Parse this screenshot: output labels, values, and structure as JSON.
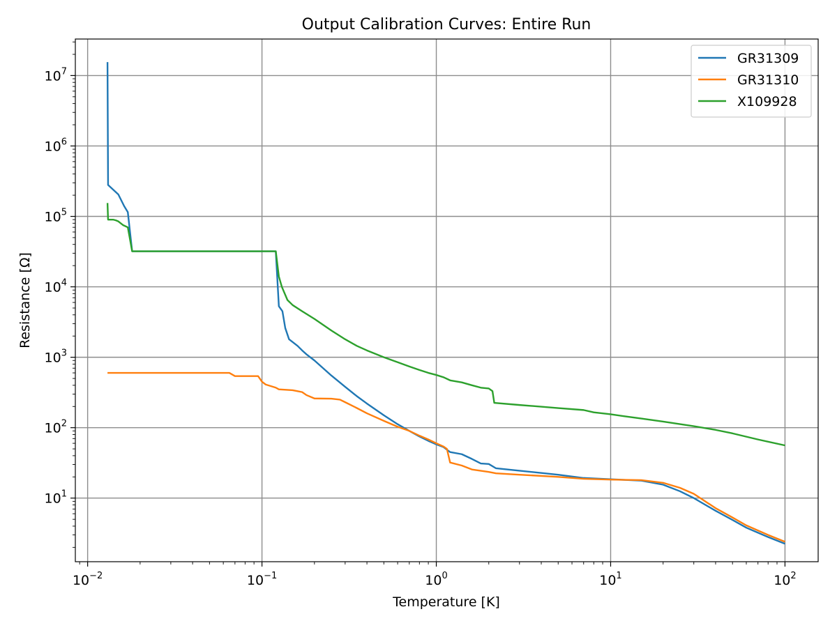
{
  "chart_data": {
    "type": "line",
    "title": "Output Calibration Curves: Entire Run",
    "xlabel": "Temperature [K]",
    "ylabel": "Resistance [Ω]",
    "xscale": "log",
    "yscale": "log",
    "xlim": [
      0.0085,
      155
    ],
    "ylim": [
      1.25,
      33000000
    ],
    "grid": true,
    "legend_position": "top-right",
    "x_ticks": [
      {
        "value": 0.01,
        "base": "10",
        "exp": "−2"
      },
      {
        "value": 0.1,
        "base": "10",
        "exp": "−1"
      },
      {
        "value": 1,
        "base": "10",
        "exp": "0"
      },
      {
        "value": 10,
        "base": "10",
        "exp": "1"
      },
      {
        "value": 100,
        "base": "10",
        "exp": "2"
      }
    ],
    "y_ticks": [
      {
        "value": 10,
        "base": "10",
        "exp": "1"
      },
      {
        "value": 100,
        "base": "10",
        "exp": "2"
      },
      {
        "value": 1000,
        "base": "10",
        "exp": "3"
      },
      {
        "value": 10000,
        "base": "10",
        "exp": "4"
      },
      {
        "value": 100000,
        "base": "10",
        "exp": "5"
      },
      {
        "value": 1000000,
        "base": "10",
        "exp": "6"
      },
      {
        "value": 10000000,
        "base": "10",
        "exp": "7"
      }
    ],
    "series": [
      {
        "name": "GR31309",
        "color": "#1f77b4",
        "points": [
          [
            0.013,
            15500000
          ],
          [
            0.0131,
            280000
          ],
          [
            0.015,
            205000
          ],
          [
            0.0162,
            140000
          ],
          [
            0.017,
            115000
          ],
          [
            0.018,
            32000
          ],
          [
            0.12,
            32000
          ],
          [
            0.125,
            5300
          ],
          [
            0.131,
            4500
          ],
          [
            0.136,
            2600
          ],
          [
            0.143,
            1800
          ],
          [
            0.16,
            1450
          ],
          [
            0.17,
            1250
          ],
          [
            0.18,
            1100
          ],
          [
            0.2,
            900
          ],
          [
            0.25,
            550
          ],
          [
            0.3,
            380
          ],
          [
            0.35,
            280
          ],
          [
            0.4,
            220
          ],
          [
            0.5,
            150
          ],
          [
            0.6,
            112
          ],
          [
            0.7,
            90
          ],
          [
            0.8,
            75
          ],
          [
            0.9,
            65
          ],
          [
            1.0,
            58
          ],
          [
            1.1,
            53
          ],
          [
            1.2,
            45
          ],
          [
            1.4,
            42
          ],
          [
            1.6,
            36
          ],
          [
            1.8,
            31
          ],
          [
            2.0,
            30.5
          ],
          [
            2.2,
            26.5
          ],
          [
            3,
            24.5
          ],
          [
            5,
            21.5
          ],
          [
            7,
            19.3
          ],
          [
            10,
            18.5
          ],
          [
            15,
            17.7
          ],
          [
            20,
            15.5
          ],
          [
            25,
            12.5
          ],
          [
            30,
            10
          ],
          [
            40,
            6.6
          ],
          [
            50,
            4.9
          ],
          [
            60,
            3.8
          ],
          [
            80,
            2.8
          ],
          [
            100,
            2.25
          ]
        ]
      },
      {
        "name": "GR31310",
        "color": "#ff7f0e",
        "points": [
          [
            0.013,
            600
          ],
          [
            0.065,
            600
          ],
          [
            0.07,
            540
          ],
          [
            0.095,
            540
          ],
          [
            0.1,
            450
          ],
          [
            0.105,
            410
          ],
          [
            0.12,
            370
          ],
          [
            0.125,
            350
          ],
          [
            0.15,
            340
          ],
          [
            0.16,
            330
          ],
          [
            0.17,
            320
          ],
          [
            0.18,
            290
          ],
          [
            0.2,
            260
          ],
          [
            0.25,
            258
          ],
          [
            0.28,
            250
          ],
          [
            0.3,
            230
          ],
          [
            0.35,
            190
          ],
          [
            0.4,
            160
          ],
          [
            0.5,
            125
          ],
          [
            0.6,
            103
          ],
          [
            0.7,
            90
          ],
          [
            0.8,
            77
          ],
          [
            0.9,
            68
          ],
          [
            1.0,
            60
          ],
          [
            1.1,
            54
          ],
          [
            1.15,
            50
          ],
          [
            1.2,
            32
          ],
          [
            1.4,
            29
          ],
          [
            1.6,
            25.5
          ],
          [
            2.0,
            23.5
          ],
          [
            2.2,
            22.5
          ],
          [
            3,
            21.5
          ],
          [
            5,
            20
          ],
          [
            7,
            18.8
          ],
          [
            10,
            18.3
          ],
          [
            15,
            18
          ],
          [
            20,
            16.5
          ],
          [
            25,
            14
          ],
          [
            30,
            11.5
          ],
          [
            40,
            7.2
          ],
          [
            50,
            5.3
          ],
          [
            60,
            4.1
          ],
          [
            80,
            3.0
          ],
          [
            100,
            2.4
          ]
        ]
      },
      {
        "name": "X109928",
        "color": "#2ca02c",
        "points": [
          [
            0.013,
            155000
          ],
          [
            0.0131,
            90000
          ],
          [
            0.014,
            90000
          ],
          [
            0.0145,
            88000
          ],
          [
            0.015,
            85000
          ],
          [
            0.016,
            75000
          ],
          [
            0.017,
            70000
          ],
          [
            0.018,
            32000
          ],
          [
            0.12,
            32000
          ],
          [
            0.125,
            14000
          ],
          [
            0.13,
            10000
          ],
          [
            0.14,
            6500
          ],
          [
            0.15,
            5500
          ],
          [
            0.17,
            4500
          ],
          [
            0.2,
            3500
          ],
          [
            0.25,
            2400
          ],
          [
            0.3,
            1800
          ],
          [
            0.35,
            1450
          ],
          [
            0.4,
            1250
          ],
          [
            0.5,
            1000
          ],
          [
            0.6,
            850
          ],
          [
            0.7,
            740
          ],
          [
            0.8,
            660
          ],
          [
            0.9,
            600
          ],
          [
            1.0,
            560
          ],
          [
            1.1,
            520
          ],
          [
            1.2,
            470
          ],
          [
            1.4,
            440
          ],
          [
            1.6,
            400
          ],
          [
            1.8,
            370
          ],
          [
            2.0,
            360
          ],
          [
            2.1,
            330
          ],
          [
            2.15,
            225
          ],
          [
            3,
            210
          ],
          [
            5,
            190
          ],
          [
            7,
            178
          ],
          [
            8,
            165
          ],
          [
            10,
            155
          ],
          [
            12,
            145
          ],
          [
            15,
            135
          ],
          [
            20,
            122
          ],
          [
            30,
            105
          ],
          [
            40,
            93
          ],
          [
            50,
            83
          ],
          [
            70,
            68
          ],
          [
            100,
            56
          ]
        ]
      }
    ]
  }
}
